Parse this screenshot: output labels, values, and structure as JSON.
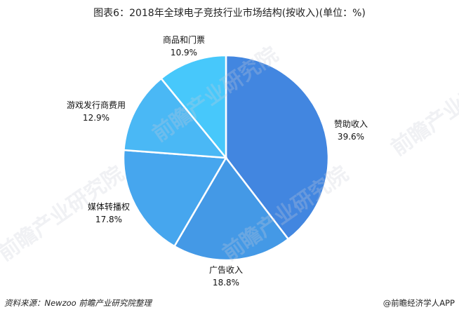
{
  "title": "图表6：2018年全球电子竞技行业市场结构(按收入)(单位：%)",
  "footer": {
    "source": "资料来源：Newzoo 前瞻产业研究院整理",
    "credit": "@前瞻经济学人APP"
  },
  "watermark": "前瞻产业研究院",
  "colors": {
    "sponsorship": "#4286E0",
    "advertising": "#4499E6",
    "media_rights": "#46A6EE",
    "publisher_fees": "#4AB8F5",
    "merch_tickets": "#47C8FB"
  },
  "labels": [
    {
      "name": "赞助收入",
      "pct": "39.6%"
    },
    {
      "name": "广告收入",
      "pct": "18.8%"
    },
    {
      "name": "媒体转播权",
      "pct": "17.8%"
    },
    {
      "name": "游戏发行商费用",
      "pct": "12.9%"
    },
    {
      "name": "商品和门票",
      "pct": "10.9%"
    }
  ],
  "chart_data": {
    "type": "pie",
    "title": "图表6：2018年全球电子竞技行业市场结构(按收入)(单位：%)",
    "categories": [
      "赞助收入",
      "广告收入",
      "媒体转播权",
      "游戏发行商费用",
      "商品和门票"
    ],
    "values": [
      39.6,
      18.8,
      17.8,
      12.9,
      10.9
    ],
    "colors": [
      "#4286E0",
      "#4499E6",
      "#46A6EE",
      "#4AB8F5",
      "#47C8FB"
    ],
    "unit": "%",
    "start_angle": "12 o'clock, clockwise",
    "legend": "none (direct labels)",
    "source": "资料来源：Newzoo 前瞻产业研究院整理"
  }
}
